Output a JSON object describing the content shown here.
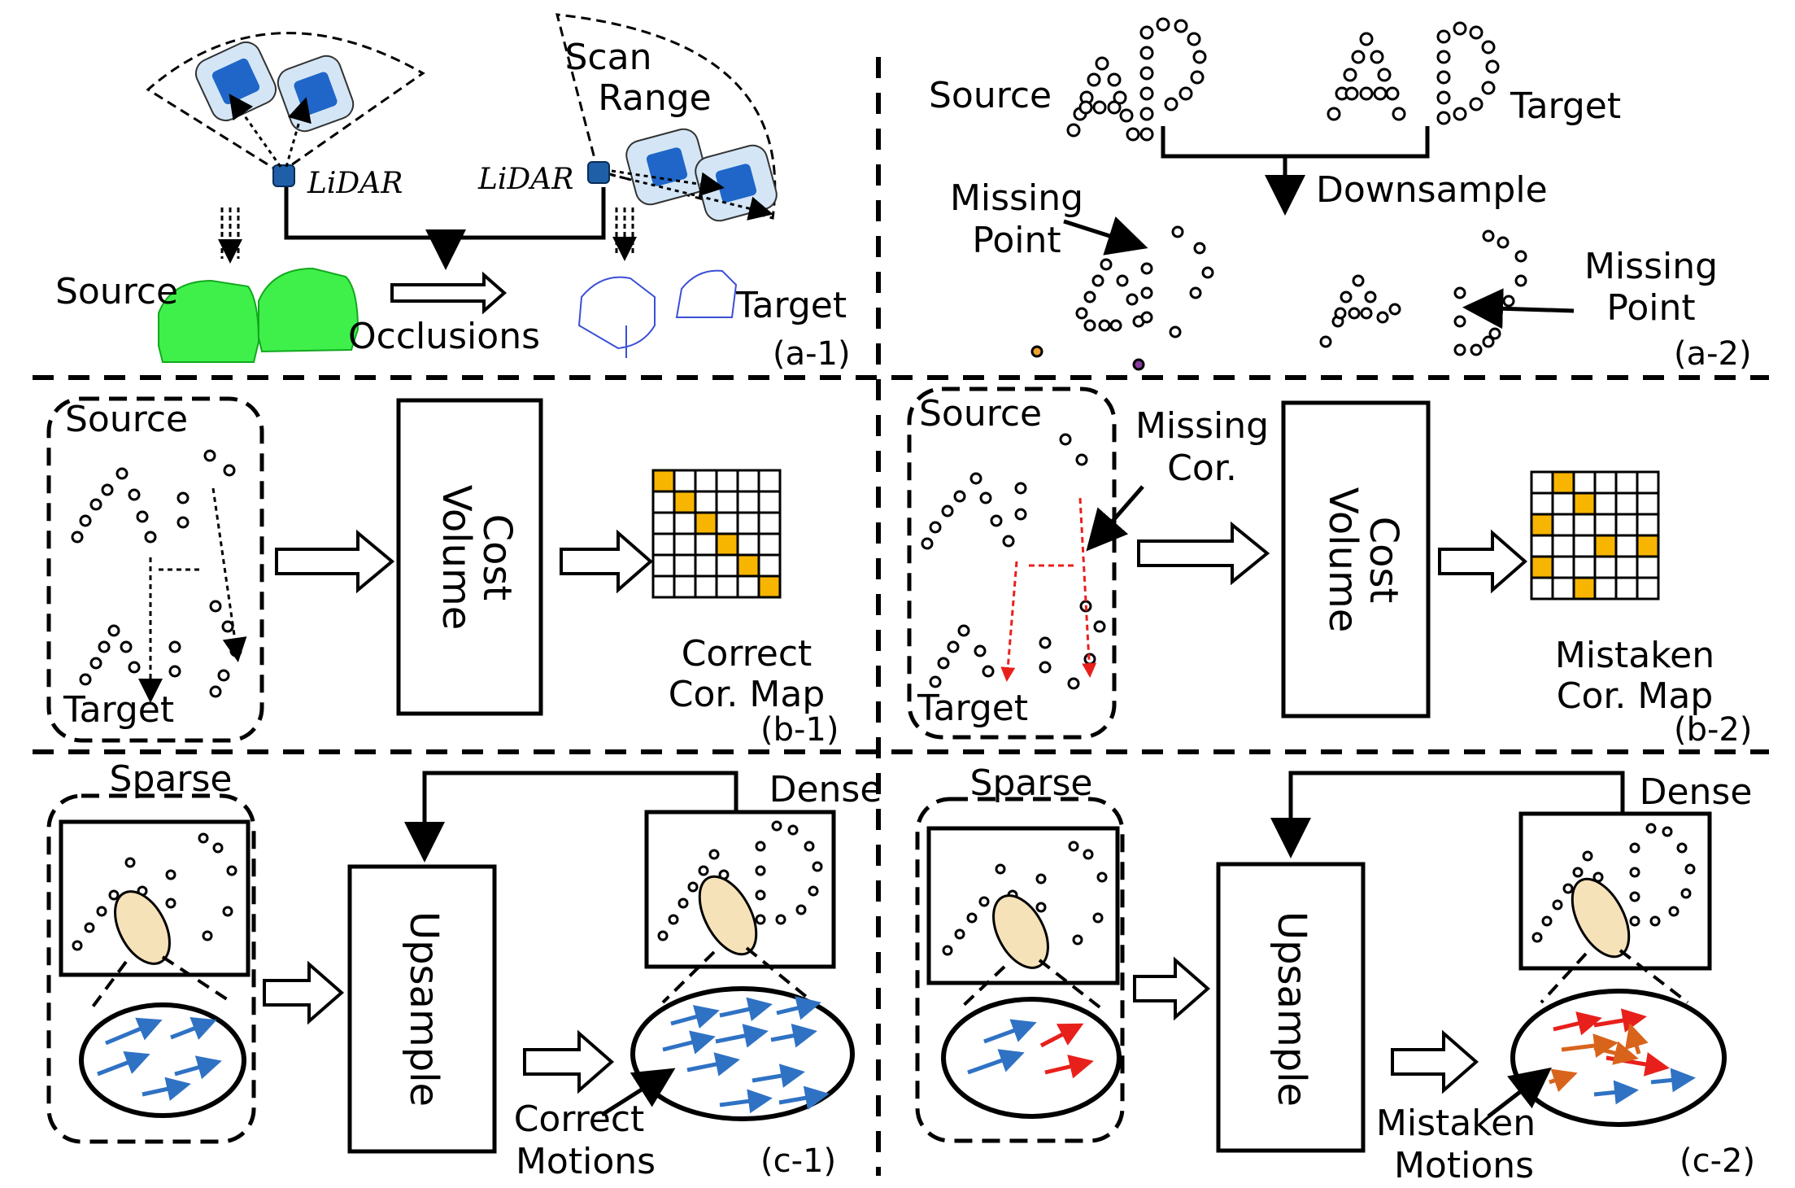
{
  "panel_a1": {
    "scan_range_line1": "Scan",
    "scan_range_line2": "Range",
    "lidar_left": "LiDAR",
    "lidar_right": "LiDAR",
    "source": "Source",
    "target": "Target",
    "occlusions": "Occlusions",
    "tag": "(a-1)"
  },
  "panel_a2": {
    "source": "Source",
    "target": "Target",
    "downsample": "Downsample",
    "missing_left_line1": "Missing",
    "missing_left_line2": "Point",
    "missing_right_line1": "Missing",
    "missing_right_line2": "Point",
    "tag": "(a-2)"
  },
  "panel_b1": {
    "source": "Source",
    "target": "Target",
    "cost_line1": "Cost",
    "cost_line2": "Volume",
    "map_line1": "Correct",
    "map_line2": "Cor. Map",
    "tag": "(b-1)"
  },
  "panel_b2": {
    "source": "Source",
    "target": "Target",
    "missing_line1": "Missing",
    "missing_line2": "Cor.",
    "cost_line1": "Cost",
    "cost_line2": "Volume",
    "map_line1": "Mistaken",
    "map_line2": "Cor. Map",
    "tag": "(b-2)"
  },
  "panel_c1": {
    "sparse": "Sparse",
    "dense": "Dense",
    "upsample": "Upsample",
    "motions_line1": "Correct",
    "motions_line2": "Motions",
    "tag": "(c-1)"
  },
  "panel_c2": {
    "sparse": "Sparse",
    "dense": "Dense",
    "upsample": "Upsample",
    "motions_line1": "Mistaken",
    "motions_line2": "Motions",
    "tag": "(c-2)"
  },
  "colors": {
    "highlight_cell": "#f7b500",
    "arrow_blue": "#2f72c4",
    "arrow_red": "#e8201c",
    "arrow_orange": "#d8641c",
    "lidar_blue": "#1f5fa8",
    "car_green": "#2fe83a",
    "dashed_red": "#e8201c",
    "ellipse_fill": "#f6e2b8"
  }
}
